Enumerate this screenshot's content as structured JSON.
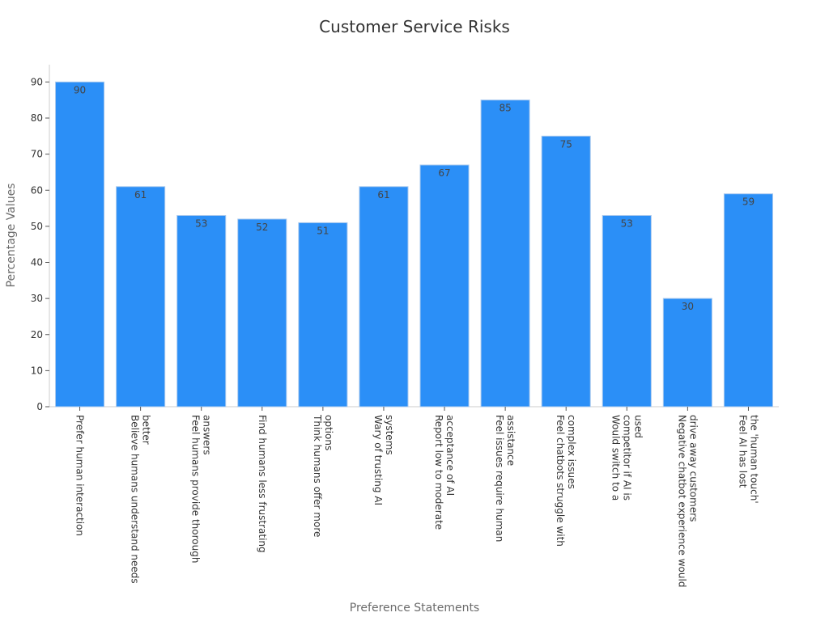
{
  "chart_data": {
    "type": "bar",
    "title": "Customer Service Risks",
    "xlabel": "Preference Statements",
    "ylabel": "Percentage Values",
    "categories": [
      [
        "Prefer human interaction"
      ],
      [
        "Believe humans understand needs",
        "better"
      ],
      [
        "Feel humans provide thorough",
        "answers"
      ],
      [
        "Find humans less frustrating"
      ],
      [
        "Think humans offer more",
        "options"
      ],
      [
        "Wary of trusting AI",
        "systems"
      ],
      [
        "Report low to moderate",
        "acceptance of AI"
      ],
      [
        "Feel issues require human",
        "assistance"
      ],
      [
        "Feel chatbots struggle with",
        "complex issues"
      ],
      [
        "Would switch to a",
        "competitor if AI is",
        "used"
      ],
      [
        "Negative chatbot experience would",
        "drive away customers"
      ],
      [
        "Feel AI has lost",
        "the 'human touch'"
      ]
    ],
    "values": [
      90,
      61,
      53,
      52,
      51,
      61,
      67,
      85,
      75,
      53,
      30,
      59
    ],
    "ylim": [
      0,
      93
    ],
    "yticks": [
      0,
      10,
      20,
      30,
      40,
      50,
      60,
      70,
      80,
      90
    ],
    "bar_color": "#2b8ff7",
    "bar_edge_color": "#a9c9ee",
    "grid": false,
    "legend": "none"
  }
}
